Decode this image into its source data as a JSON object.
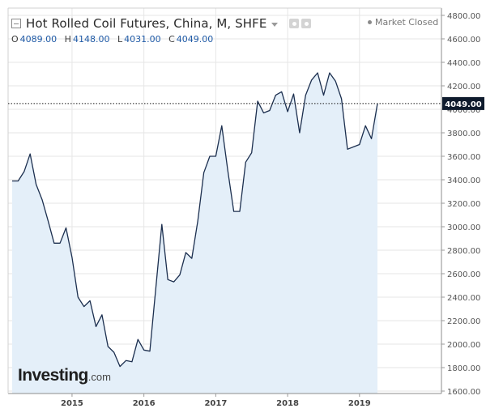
{
  "header": {
    "title": "Hot Rolled Coil Futures, China, M, SHFE",
    "market_status": "Market Closed",
    "ohlc": {
      "o_label": "O",
      "o": "4089.00",
      "h_label": "H",
      "h": "4148.00",
      "l_label": "L",
      "l": "4031.00",
      "c_label": "C",
      "c": "4049.00"
    }
  },
  "watermark": {
    "brand": "Investing",
    "suffix": ".com"
  },
  "colors": {
    "line": "#1c2f4f",
    "fill": "#e4eff9",
    "tag_bg": "#0f1b2d",
    "grid": "#e6e6e6"
  },
  "chart_data": {
    "type": "area",
    "title": "Hot Rolled Coil Futures, China, M, SHFE",
    "xlabel": "",
    "ylabel": "",
    "ylim": [
      1600,
      4800
    ],
    "y_ticks": [
      "1600.00",
      "1800.00",
      "2000.00",
      "2200.00",
      "2400.00",
      "2600.00",
      "2800.00",
      "3000.00",
      "3200.00",
      "3400.00",
      "3600.00",
      "3800.00",
      "4000.00",
      "4200.00",
      "4400.00",
      "4600.00",
      "4800.00"
    ],
    "x_ticks": [
      "2015",
      "2016",
      "2017",
      "2018",
      "2019"
    ],
    "last_value_label": "4049.00",
    "last_value": 4049,
    "grid": true,
    "series": [
      {
        "x": [
          "2014-03",
          "2014-04",
          "2014-05",
          "2014-06",
          "2014-07",
          "2014-08",
          "2014-09",
          "2014-10",
          "2014-11",
          "2014-12",
          "2015-01",
          "2015-02",
          "2015-03",
          "2015-04",
          "2015-05",
          "2015-06",
          "2015-07",
          "2015-08",
          "2015-09",
          "2015-10",
          "2015-11",
          "2015-12",
          "2016-01",
          "2016-02",
          "2016-03",
          "2016-04",
          "2016-05",
          "2016-06",
          "2016-07",
          "2016-08",
          "2016-09",
          "2016-10",
          "2016-11",
          "2016-12",
          "2017-01",
          "2017-02",
          "2017-03",
          "2017-04",
          "2017-05",
          "2017-06",
          "2017-07",
          "2017-08",
          "2017-09",
          "2017-10",
          "2017-11",
          "2017-12",
          "2018-01",
          "2018-02",
          "2018-03",
          "2018-04",
          "2018-05",
          "2018-06",
          "2018-07",
          "2018-08",
          "2018-09",
          "2018-10",
          "2018-11",
          "2018-12",
          "2019-01",
          "2019-02",
          "2019-03",
          "2019-04"
        ],
        "values": [
          3390,
          3390,
          3470,
          3620,
          3360,
          3230,
          3050,
          2860,
          2860,
          2990,
          2740,
          2400,
          2320,
          2370,
          2150,
          2250,
          1980,
          1930,
          1810,
          1860,
          1850,
          2040,
          1950,
          1940,
          2480,
          3020,
          2550,
          2530,
          2590,
          2780,
          2730,
          3050,
          3460,
          3600,
          3600,
          3860,
          3480,
          3130,
          3130,
          3550,
          3630,
          4070,
          3970,
          3990,
          4120,
          4150,
          3980,
          4130,
          3800,
          4120,
          4250,
          4310,
          4120,
          4310,
          4240,
          4090,
          3660,
          3680,
          3700,
          3860,
          3750,
          4049
        ]
      }
    ]
  }
}
